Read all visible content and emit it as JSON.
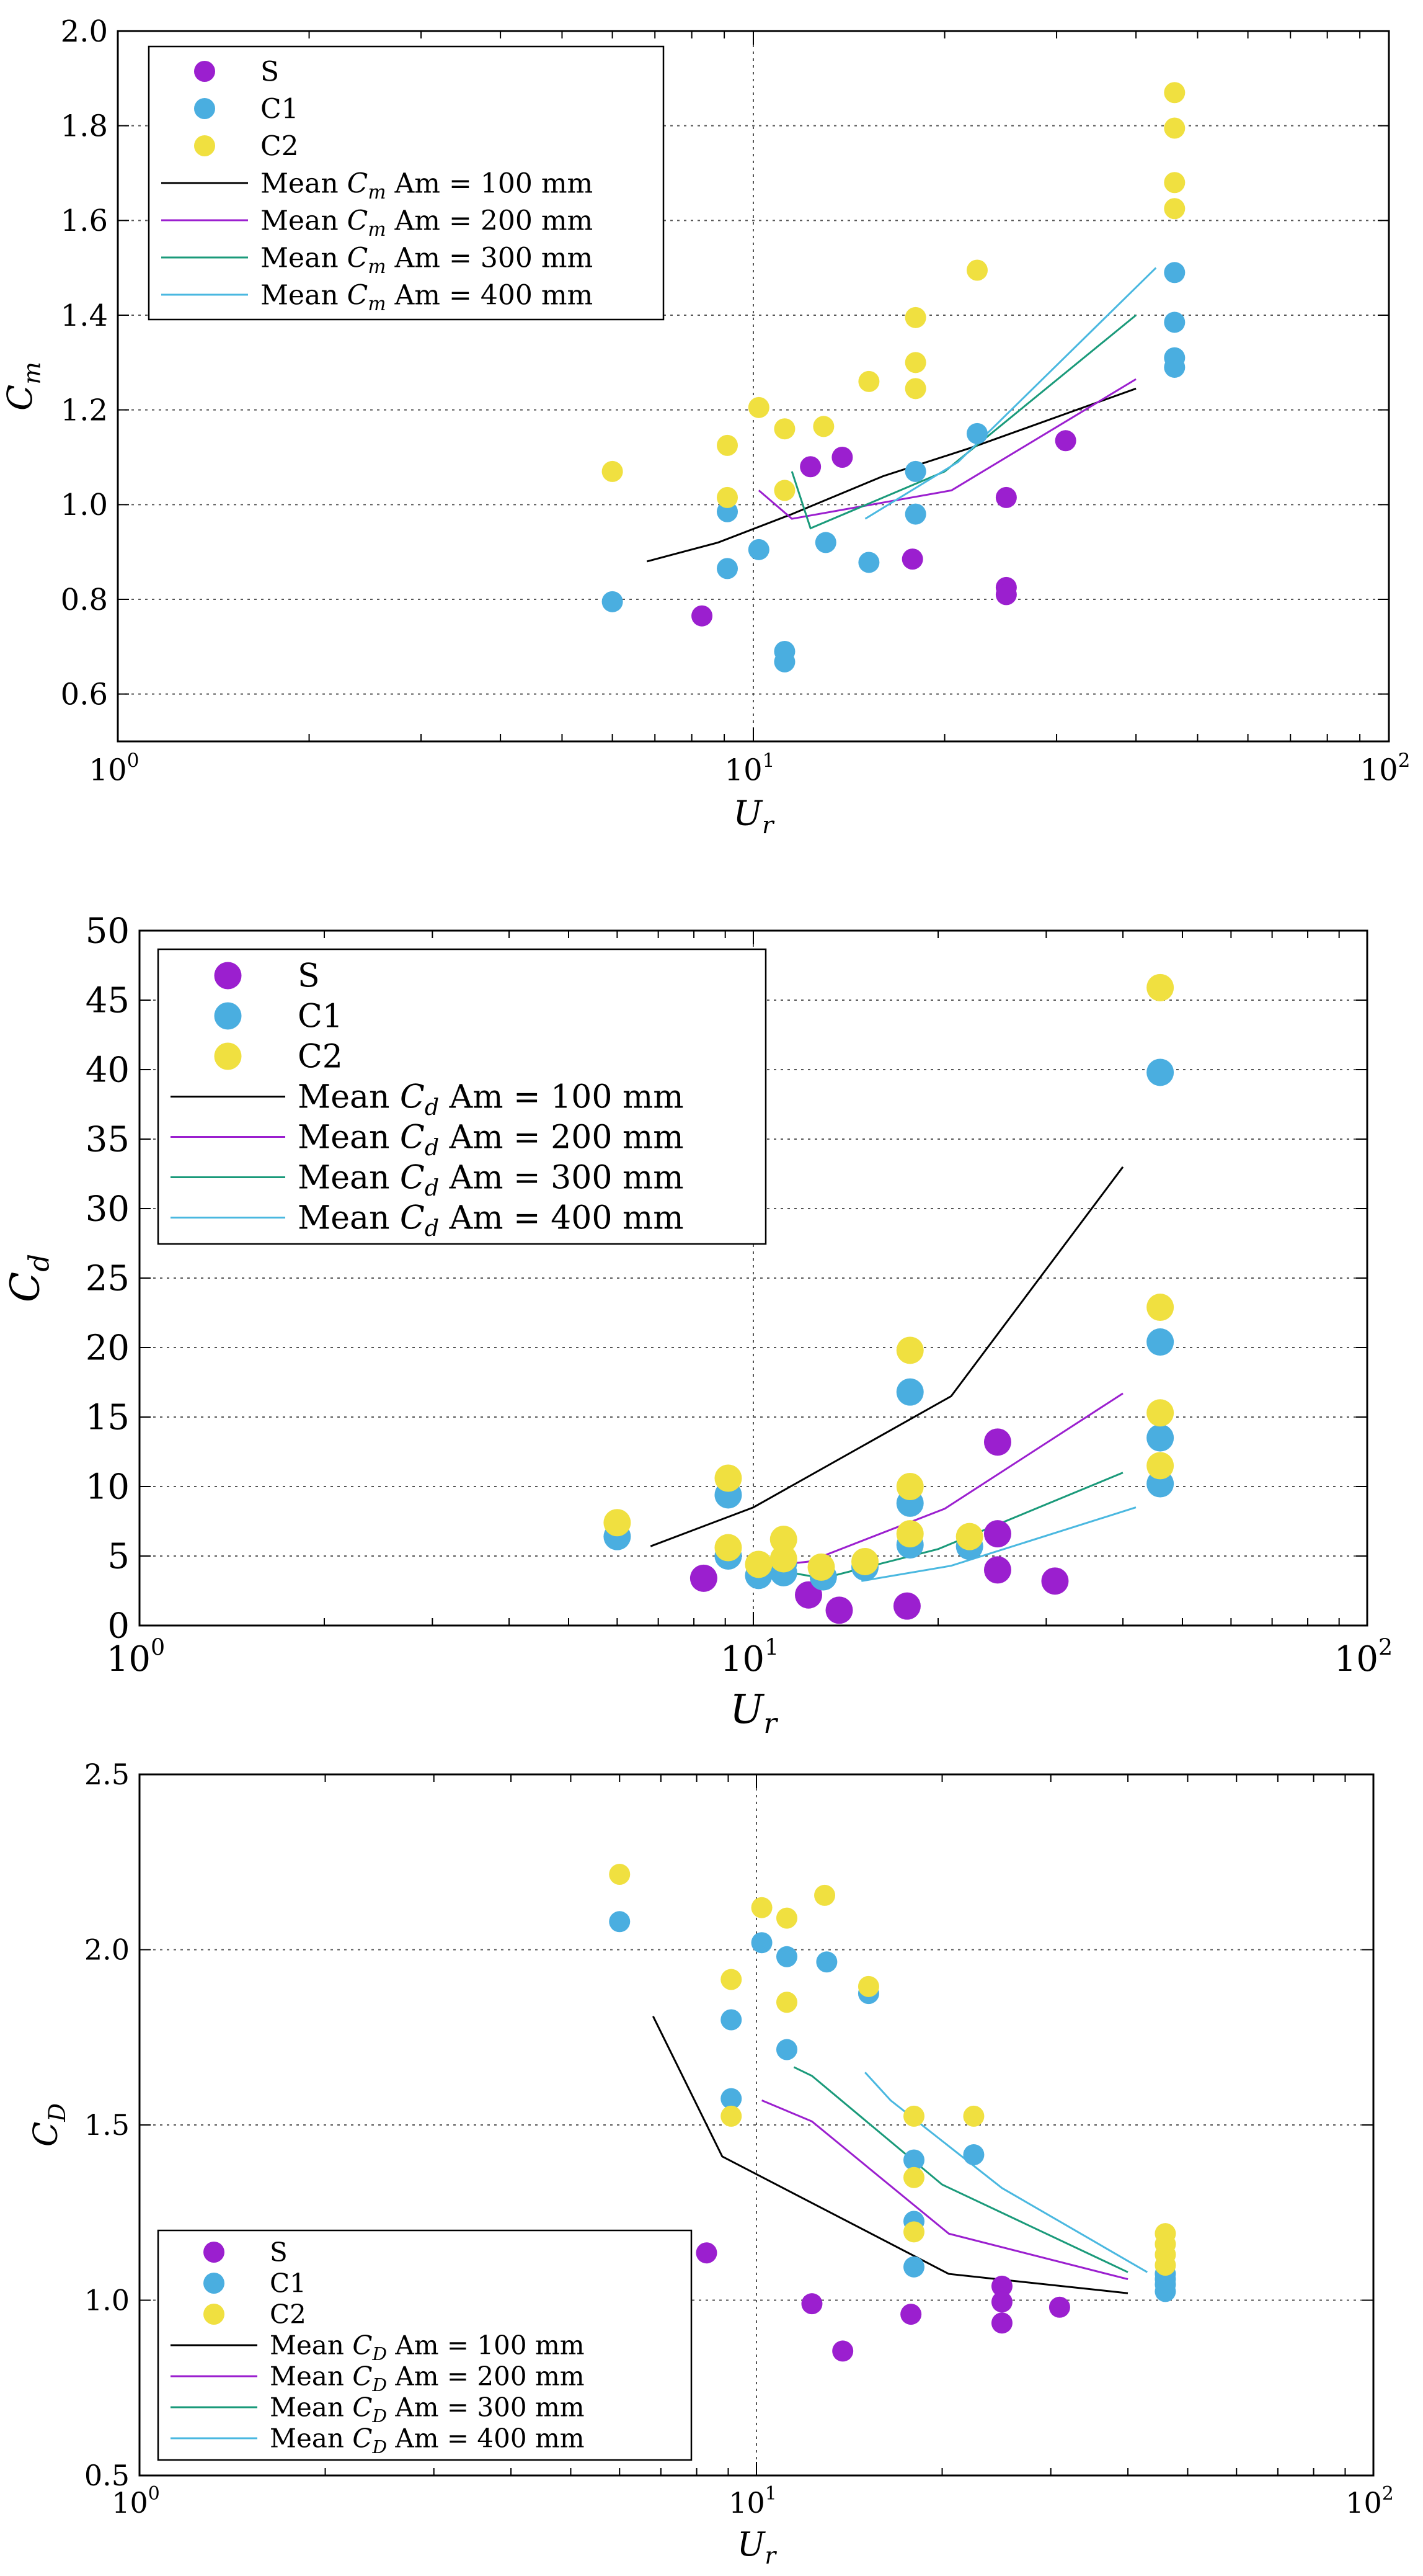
{
  "chart_data": [
    {
      "type": "scatter",
      "xlabel": "U",
      "xlabel_sub": "r",
      "ylabel": "C",
      "ylabel_sub": "m",
      "xscale": "log",
      "xlim": [
        1,
        100
      ],
      "ylim": [
        0.5,
        2.0
      ],
      "xticks": [
        {
          "value": 1,
          "base": "10",
          "exp": "0"
        },
        {
          "value": 10,
          "base": "10",
          "exp": "1"
        },
        {
          "value": 100,
          "base": "10",
          "exp": "2"
        }
      ],
      "yticks": [
        "0.6",
        "0.8",
        "1.0",
        "1.2",
        "1.4",
        "1.6",
        "1.8",
        "2.0"
      ],
      "grid": "dotted",
      "legend_position": "top-left",
      "scatter": [
        {
          "name": "S",
          "color": "#9b1fcf",
          "points": [
            [
              8.3,
              0.765
            ],
            [
              12.3,
              1.08
            ],
            [
              13.8,
              1.1
            ],
            [
              17.8,
              0.885
            ],
            [
              25,
              1.015
            ],
            [
              25,
              0.825
            ],
            [
              25,
              0.81
            ],
            [
              31,
              1.135
            ]
          ]
        },
        {
          "name": "C1",
          "color": "#4aaee0",
          "points": [
            [
              6,
              0.795
            ],
            [
              9.1,
              0.985
            ],
            [
              9.1,
              0.865
            ],
            [
              10.2,
              0.905
            ],
            [
              11.2,
              0.69
            ],
            [
              11.2,
              0.668
            ],
            [
              13,
              0.92
            ],
            [
              15.2,
              0.878
            ],
            [
              18,
              1.07
            ],
            [
              18,
              0.98
            ],
            [
              22.5,
              1.15
            ],
            [
              46,
              1.49
            ],
            [
              46,
              1.385
            ],
            [
              46,
              1.31
            ],
            [
              46,
              1.29
            ]
          ]
        },
        {
          "name": "C2",
          "color": "#f0e040",
          "points": [
            [
              6,
              1.07
            ],
            [
              9.1,
              1.125
            ],
            [
              9.1,
              1.015
            ],
            [
              10.2,
              1.205
            ],
            [
              11.2,
              1.16
            ],
            [
              11.2,
              1.03
            ],
            [
              12.9,
              1.165
            ],
            [
              15.2,
              1.26
            ],
            [
              18,
              1.395
            ],
            [
              18,
              1.3
            ],
            [
              18,
              1.245
            ],
            [
              22.5,
              1.495
            ],
            [
              46,
              1.87
            ],
            [
              46,
              1.795
            ],
            [
              46,
              1.68
            ],
            [
              46,
              1.625
            ]
          ]
        }
      ],
      "lines": [
        {
          "label_pre": "Mean ",
          "label_sym": "C",
          "label_sub": "m",
          "label_post": " Am = 100 mm",
          "color": "#000000",
          "points": [
            [
              6.8,
              0.88
            ],
            [
              8.8,
              0.92
            ],
            [
              11.5,
              0.98
            ],
            [
              16,
              1.06
            ],
            [
              22,
              1.12
            ],
            [
              40,
              1.245
            ]
          ]
        },
        {
          "label_pre": "Mean ",
          "label_sym": "C",
          "label_sub": "m",
          "label_post": " Am = 200 mm",
          "color": "#9b1fcf",
          "points": [
            [
              10.2,
              1.03
            ],
            [
              11.5,
              0.97
            ],
            [
              20.5,
              1.03
            ],
            [
              40,
              1.265
            ]
          ]
        },
        {
          "label_pre": "Mean ",
          "label_sym": "C",
          "label_sub": "m",
          "label_post": " Am = 300 mm",
          "color": "#1a9a7a",
          "points": [
            [
              11.5,
              1.07
            ],
            [
              12.3,
              0.95
            ],
            [
              20,
              1.07
            ],
            [
              40,
              1.4
            ]
          ]
        },
        {
          "label_pre": "Mean ",
          "label_sym": "C",
          "label_sub": "m",
          "label_post": " Am = 400 mm",
          "color": "#4ab8e0",
          "points": [
            [
              15,
              0.97
            ],
            [
              21,
              1.09
            ],
            [
              43,
              1.5
            ]
          ]
        }
      ]
    },
    {
      "type": "scatter",
      "xlabel": "U",
      "xlabel_sub": "r",
      "ylabel": "C",
      "ylabel_sub": "d",
      "xscale": "log",
      "xlim": [
        1,
        100
      ],
      "ylim": [
        0,
        50
      ],
      "xticks": [
        {
          "value": 1,
          "base": "10",
          "exp": "0"
        },
        {
          "value": 10,
          "base": "10",
          "exp": "1"
        },
        {
          "value": 100,
          "base": "10",
          "exp": "2"
        }
      ],
      "yticks": [
        "0",
        "5",
        "10",
        "15",
        "20",
        "25",
        "30",
        "35",
        "40",
        "45",
        "50"
      ],
      "grid": "dotted",
      "legend_position": "top-left",
      "scatter": [
        {
          "name": "S",
          "color": "#9b1fcf",
          "points": [
            [
              8.3,
              3.4
            ],
            [
              12.3,
              2.2
            ],
            [
              13.8,
              1.1
            ],
            [
              17.8,
              1.4
            ],
            [
              25,
              13.2
            ],
            [
              25,
              6.6
            ],
            [
              25,
              4
            ],
            [
              31,
              3.2
            ]
          ]
        },
        {
          "name": "C1",
          "color": "#4aaee0",
          "points": [
            [
              6,
              6.4
            ],
            [
              9.1,
              9.4
            ],
            [
              9.1,
              5
            ],
            [
              10.2,
              3.6
            ],
            [
              11.2,
              4.5
            ],
            [
              11.2,
              3.8
            ],
            [
              13,
              3.5
            ],
            [
              15.2,
              4.2
            ],
            [
              18,
              16.8
            ],
            [
              18,
              8.8
            ],
            [
              18,
              5.8
            ],
            [
              22.5,
              5.7
            ],
            [
              46,
              39.8
            ],
            [
              46,
              20.4
            ],
            [
              46,
              13.5
            ],
            [
              46,
              10.2
            ]
          ]
        },
        {
          "name": "C2",
          "color": "#f0e040",
          "points": [
            [
              6,
              7.4
            ],
            [
              9.1,
              10.6
            ],
            [
              9.1,
              5.6
            ],
            [
              10.2,
              4.4
            ],
            [
              11.2,
              6.2
            ],
            [
              11.2,
              4.8
            ],
            [
              12.9,
              4.2
            ],
            [
              15.2,
              4.6
            ],
            [
              18,
              19.8
            ],
            [
              18,
              10
            ],
            [
              18,
              6.6
            ],
            [
              22.5,
              6.4
            ],
            [
              46,
              45.9
            ],
            [
              46,
              22.9
            ],
            [
              46,
              15.3
            ],
            [
              46,
              11.5
            ]
          ]
        }
      ],
      "lines": [
        {
          "label_pre": "Mean ",
          "label_sym": "C",
          "label_sub": "d",
          "label_post": " Am = 100 mm",
          "color": "#000000",
          "points": [
            [
              6.8,
              5.7
            ],
            [
              10,
              8.5
            ],
            [
              21,
              16.5
            ],
            [
              40,
              33
            ]
          ]
        },
        {
          "label_pre": "Mean ",
          "label_sym": "C",
          "label_sub": "d",
          "label_post": " Am = 200 mm",
          "color": "#9b1fcf",
          "points": [
            [
              10.2,
              4.2
            ],
            [
              12.3,
              4.6
            ],
            [
              20.5,
              8.4
            ],
            [
              40,
              16.7
            ]
          ]
        },
        {
          "label_pre": "Mean ",
          "label_sym": "C",
          "label_sub": "d",
          "label_post": " Am = 300 mm",
          "color": "#1a9a7a",
          "points": [
            [
              11.5,
              3.8
            ],
            [
              13,
              3.4
            ],
            [
              20,
              5.5
            ],
            [
              40,
              11
            ]
          ]
        },
        {
          "label_pre": "Mean ",
          "label_sym": "C",
          "label_sub": "d",
          "label_post": " Am = 400 mm",
          "color": "#4ab8e0",
          "points": [
            [
              15,
              3.2
            ],
            [
              21,
              4.3
            ],
            [
              42,
              8.5
            ]
          ]
        }
      ]
    },
    {
      "type": "scatter",
      "xlabel": "U",
      "xlabel_sub": "r",
      "ylabel": "C",
      "ylabel_sub": "D",
      "xscale": "log",
      "xlim": [
        1,
        100
      ],
      "ylim": [
        0.5,
        2.5
      ],
      "xticks": [
        {
          "value": 1,
          "base": "10",
          "exp": "0"
        },
        {
          "value": 10,
          "base": "10",
          "exp": "1"
        },
        {
          "value": 100,
          "base": "10",
          "exp": "2"
        }
      ],
      "yticks": [
        "0.5",
        "1.0",
        "1.5",
        "2.0",
        "2.5"
      ],
      "grid": "dotted",
      "legend_position": "bottom-left",
      "scatter": [
        {
          "name": "S",
          "color": "#9b1fcf",
          "points": [
            [
              8.3,
              1.135
            ],
            [
              12.3,
              0.99
            ],
            [
              13.8,
              0.855
            ],
            [
              17.8,
              0.96
            ],
            [
              25,
              1.04
            ],
            [
              25,
              0.995
            ],
            [
              25,
              0.935
            ],
            [
              31,
              0.98
            ]
          ]
        },
        {
          "name": "C1",
          "color": "#4aaee0",
          "points": [
            [
              6,
              2.08
            ],
            [
              9.1,
              1.8
            ],
            [
              9.1,
              1.575
            ],
            [
              10.2,
              2.02
            ],
            [
              11.2,
              1.98
            ],
            [
              11.2,
              1.715
            ],
            [
              13,
              1.965
            ],
            [
              15.2,
              1.875
            ],
            [
              18,
              1.4
            ],
            [
              18,
              1.225
            ],
            [
              18,
              1.095
            ],
            [
              22.5,
              1.415
            ],
            [
              46,
              1.075
            ],
            [
              46,
              1.06
            ],
            [
              46,
              1.045
            ],
            [
              46,
              1.025
            ]
          ]
        },
        {
          "name": "C2",
          "color": "#f0e040",
          "points": [
            [
              6,
              2.215
            ],
            [
              9.1,
              1.915
            ],
            [
              9.1,
              1.525
            ],
            [
              10.2,
              2.12
            ],
            [
              11.2,
              2.09
            ],
            [
              11.2,
              1.85
            ],
            [
              12.9,
              2.155
            ],
            [
              15.2,
              1.895
            ],
            [
              18,
              1.525
            ],
            [
              18,
              1.35
            ],
            [
              18,
              1.195
            ],
            [
              22.5,
              1.525
            ],
            [
              46,
              1.19
            ],
            [
              46,
              1.16
            ],
            [
              46,
              1.13
            ],
            [
              46,
              1.1
            ]
          ]
        }
      ],
      "lines": [
        {
          "label_pre": "Mean ",
          "label_sym": "C",
          "label_sub": "D",
          "label_post": " Am = 100 mm",
          "color": "#000000",
          "points": [
            [
              6.8,
              1.81
            ],
            [
              8.8,
              1.41
            ],
            [
              20.5,
              1.075
            ],
            [
              40,
              1.02
            ]
          ]
        },
        {
          "label_pre": "Mean ",
          "label_sym": "C",
          "label_sub": "D",
          "label_post": " Am = 200 mm",
          "color": "#9b1fcf",
          "points": [
            [
              10.2,
              1.57
            ],
            [
              12.3,
              1.51
            ],
            [
              20.5,
              1.19
            ],
            [
              40,
              1.06
            ]
          ]
        },
        {
          "label_pre": "Mean ",
          "label_sym": "C",
          "label_sub": "D",
          "label_post": " Am = 300 mm",
          "color": "#1a9a7a",
          "points": [
            [
              11.5,
              1.665
            ],
            [
              12.3,
              1.64
            ],
            [
              20,
              1.33
            ],
            [
              40,
              1.08
            ]
          ]
        },
        {
          "label_pre": "Mean ",
          "label_sym": "C",
          "label_sub": "D",
          "label_post": " Am = 400 mm",
          "color": "#4ab8e0",
          "points": [
            [
              15,
              1.65
            ],
            [
              16.5,
              1.57
            ],
            [
              25,
              1.32
            ],
            [
              43,
              1.08
            ]
          ]
        }
      ]
    }
  ]
}
